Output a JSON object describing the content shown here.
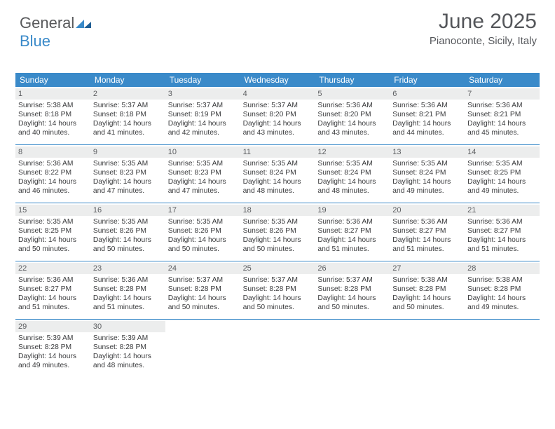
{
  "logo": {
    "text_top": "General",
    "text_bottom": "Blue"
  },
  "header": {
    "title": "June 2025",
    "location": "Pianoconte, Sicily, Italy"
  },
  "colors": {
    "header_bar": "#3a8ac9",
    "header_text": "#ffffff",
    "daynum_bg": "#eceded",
    "daynum_text": "#5c5e61",
    "body_text": "#3a3b3d",
    "rule": "#3a8ac9",
    "title_text": "#54565a",
    "logo_gray": "#58595b",
    "logo_blue": "#3a8ac9",
    "page_bg": "#ffffff"
  },
  "typography": {
    "title_fontsize": 30,
    "subtitle_fontsize": 15,
    "weekday_fontsize": 12,
    "daynum_fontsize": 11,
    "body_fontsize": 10.3
  },
  "layout": {
    "columns": 7,
    "rows": 5,
    "calendar_width": 748,
    "day_min_height": 82
  },
  "weekdays": [
    "Sunday",
    "Monday",
    "Tuesday",
    "Wednesday",
    "Thursday",
    "Friday",
    "Saturday"
  ],
  "labels": {
    "sunrise": "Sunrise:",
    "sunset": "Sunset:",
    "daylight": "Daylight:"
  },
  "days": [
    {
      "n": 1,
      "sunrise": "5:38 AM",
      "sunset": "8:18 PM",
      "daylight": "14 hours and 40 minutes."
    },
    {
      "n": 2,
      "sunrise": "5:37 AM",
      "sunset": "8:18 PM",
      "daylight": "14 hours and 41 minutes."
    },
    {
      "n": 3,
      "sunrise": "5:37 AM",
      "sunset": "8:19 PM",
      "daylight": "14 hours and 42 minutes."
    },
    {
      "n": 4,
      "sunrise": "5:37 AM",
      "sunset": "8:20 PM",
      "daylight": "14 hours and 43 minutes."
    },
    {
      "n": 5,
      "sunrise": "5:36 AM",
      "sunset": "8:20 PM",
      "daylight": "14 hours and 43 minutes."
    },
    {
      "n": 6,
      "sunrise": "5:36 AM",
      "sunset": "8:21 PM",
      "daylight": "14 hours and 44 minutes."
    },
    {
      "n": 7,
      "sunrise": "5:36 AM",
      "sunset": "8:21 PM",
      "daylight": "14 hours and 45 minutes."
    },
    {
      "n": 8,
      "sunrise": "5:36 AM",
      "sunset": "8:22 PM",
      "daylight": "14 hours and 46 minutes."
    },
    {
      "n": 9,
      "sunrise": "5:35 AM",
      "sunset": "8:23 PM",
      "daylight": "14 hours and 47 minutes."
    },
    {
      "n": 10,
      "sunrise": "5:35 AM",
      "sunset": "8:23 PM",
      "daylight": "14 hours and 47 minutes."
    },
    {
      "n": 11,
      "sunrise": "5:35 AM",
      "sunset": "8:24 PM",
      "daylight": "14 hours and 48 minutes."
    },
    {
      "n": 12,
      "sunrise": "5:35 AM",
      "sunset": "8:24 PM",
      "daylight": "14 hours and 48 minutes."
    },
    {
      "n": 13,
      "sunrise": "5:35 AM",
      "sunset": "8:24 PM",
      "daylight": "14 hours and 49 minutes."
    },
    {
      "n": 14,
      "sunrise": "5:35 AM",
      "sunset": "8:25 PM",
      "daylight": "14 hours and 49 minutes."
    },
    {
      "n": 15,
      "sunrise": "5:35 AM",
      "sunset": "8:25 PM",
      "daylight": "14 hours and 50 minutes."
    },
    {
      "n": 16,
      "sunrise": "5:35 AM",
      "sunset": "8:26 PM",
      "daylight": "14 hours and 50 minutes."
    },
    {
      "n": 17,
      "sunrise": "5:35 AM",
      "sunset": "8:26 PM",
      "daylight": "14 hours and 50 minutes."
    },
    {
      "n": 18,
      "sunrise": "5:35 AM",
      "sunset": "8:26 PM",
      "daylight": "14 hours and 50 minutes."
    },
    {
      "n": 19,
      "sunrise": "5:36 AM",
      "sunset": "8:27 PM",
      "daylight": "14 hours and 51 minutes."
    },
    {
      "n": 20,
      "sunrise": "5:36 AM",
      "sunset": "8:27 PM",
      "daylight": "14 hours and 51 minutes."
    },
    {
      "n": 21,
      "sunrise": "5:36 AM",
      "sunset": "8:27 PM",
      "daylight": "14 hours and 51 minutes."
    },
    {
      "n": 22,
      "sunrise": "5:36 AM",
      "sunset": "8:27 PM",
      "daylight": "14 hours and 51 minutes."
    },
    {
      "n": 23,
      "sunrise": "5:36 AM",
      "sunset": "8:28 PM",
      "daylight": "14 hours and 51 minutes."
    },
    {
      "n": 24,
      "sunrise": "5:37 AM",
      "sunset": "8:28 PM",
      "daylight": "14 hours and 50 minutes."
    },
    {
      "n": 25,
      "sunrise": "5:37 AM",
      "sunset": "8:28 PM",
      "daylight": "14 hours and 50 minutes."
    },
    {
      "n": 26,
      "sunrise": "5:37 AM",
      "sunset": "8:28 PM",
      "daylight": "14 hours and 50 minutes."
    },
    {
      "n": 27,
      "sunrise": "5:38 AM",
      "sunset": "8:28 PM",
      "daylight": "14 hours and 50 minutes."
    },
    {
      "n": 28,
      "sunrise": "5:38 AM",
      "sunset": "8:28 PM",
      "daylight": "14 hours and 49 minutes."
    },
    {
      "n": 29,
      "sunrise": "5:39 AM",
      "sunset": "8:28 PM",
      "daylight": "14 hours and 49 minutes."
    },
    {
      "n": 30,
      "sunrise": "5:39 AM",
      "sunset": "8:28 PM",
      "daylight": "14 hours and 48 minutes."
    }
  ]
}
